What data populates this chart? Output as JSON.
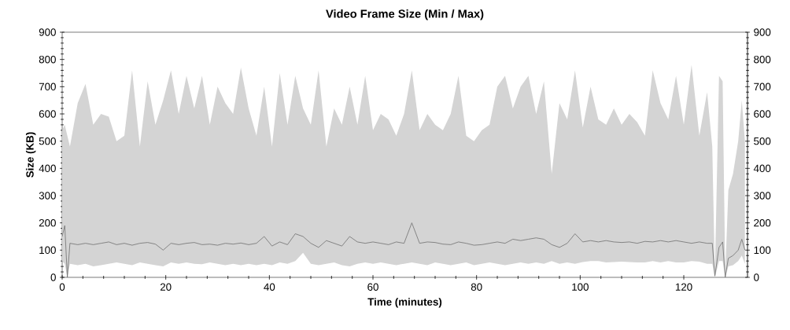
{
  "chart_data": {
    "type": "line",
    "title": "Video Frame Size (Min / Max)",
    "xlabel": "Time (minutes)",
    "ylabel": "Size (KB)",
    "x": [
      0,
      0.5,
      1,
      1.5,
      3,
      4.5,
      6,
      7.5,
      9,
      10.5,
      12,
      13.5,
      15,
      16.5,
      18,
      19.5,
      21,
      22.5,
      24,
      25.5,
      27,
      28.5,
      30,
      31.5,
      33,
      34.5,
      36,
      37.5,
      39,
      40.5,
      42,
      43.5,
      45,
      46.5,
      48,
      49.5,
      51,
      52.5,
      54,
      55.5,
      57,
      58.5,
      60,
      61.5,
      63,
      64.5,
      66,
      67.5,
      69,
      70.5,
      72,
      73.5,
      75,
      76.5,
      78,
      79.5,
      81,
      82.5,
      84,
      85.5,
      87,
      88.5,
      90,
      91.5,
      93,
      94.5,
      96,
      97.5,
      99,
      100.5,
      102,
      103.5,
      105,
      106.5,
      108,
      109.5,
      111,
      112.5,
      114,
      115.5,
      117,
      118.5,
      120,
      121.5,
      123,
      124.5,
      125.5,
      126,
      126.8,
      127.5,
      128,
      128.6,
      129.5,
      130.5,
      131.2,
      131.8
    ],
    "series": [
      {
        "color": "#707070",
        "values": [
          150,
          190,
          0,
          125,
          120,
          125,
          120,
          125,
          130,
          120,
          125,
          118,
          125,
          128,
          122,
          100,
          125,
          120,
          125,
          128,
          120,
          122,
          118,
          125,
          122,
          126,
          120,
          125,
          150,
          115,
          130,
          120,
          160,
          150,
          125,
          110,
          135,
          125,
          115,
          150,
          130,
          125,
          130,
          125,
          120,
          130,
          125,
          200,
          125,
          130,
          128,
          122,
          120,
          130,
          125,
          118,
          120,
          125,
          130,
          125,
          140,
          135,
          140,
          145,
          140,
          120,
          110,
          125,
          160,
          130,
          135,
          130,
          135,
          130,
          128,
          130,
          125,
          132,
          130,
          135,
          130,
          135,
          130,
          125,
          130,
          125,
          125,
          5,
          110,
          130,
          0,
          70,
          80,
          100,
          140,
          100
        ],
        "lower": [
          60,
          50,
          0,
          50,
          45,
          50,
          40,
          45,
          50,
          55,
          50,
          45,
          55,
          50,
          45,
          40,
          55,
          50,
          55,
          50,
          48,
          55,
          50,
          45,
          50,
          45,
          50,
          45,
          50,
          45,
          55,
          50,
          60,
          90,
          50,
          45,
          50,
          55,
          45,
          40,
          50,
          55,
          50,
          55,
          50,
          45,
          50,
          55,
          50,
          45,
          55,
          50,
          45,
          50,
          55,
          45,
          50,
          55,
          50,
          45,
          50,
          55,
          50,
          55,
          50,
          60,
          50,
          55,
          50,
          56,
          60,
          60,
          55,
          56,
          58,
          56,
          55,
          55,
          60,
          55,
          60,
          55,
          55,
          60,
          58,
          50,
          50,
          0,
          60,
          60,
          0,
          40,
          45,
          60,
          80,
          50
        ],
        "upper": [
          540,
          560,
          520,
          480,
          640,
          710,
          560,
          600,
          590,
          500,
          520,
          760,
          480,
          720,
          560,
          650,
          760,
          600,
          740,
          620,
          740,
          560,
          700,
          640,
          600,
          770,
          620,
          520,
          700,
          480,
          750,
          560,
          740,
          620,
          560,
          760,
          480,
          620,
          560,
          700,
          560,
          740,
          540,
          600,
          580,
          520,
          600,
          760,
          540,
          600,
          560,
          540,
          600,
          740,
          520,
          500,
          540,
          560,
          700,
          740,
          620,
          700,
          740,
          600,
          720,
          380,
          640,
          580,
          760,
          550,
          700,
          580,
          560,
          620,
          560,
          600,
          570,
          520,
          760,
          640,
          580,
          740,
          560,
          780,
          520,
          680,
          480,
          10,
          740,
          720,
          10,
          320,
          380,
          500,
          650,
          500
        ]
      }
    ],
    "xlim": [
      0,
      132.3
    ],
    "xticks": [
      0,
      20,
      40,
      60,
      80,
      100,
      120
    ],
    "ylim": [
      0,
      900
    ],
    "yticks": [
      0,
      100,
      200,
      300,
      400,
      500,
      600,
      700,
      800,
      900
    ],
    "y2lim": [
      0,
      900
    ],
    "y2ticks": [
      0,
      100,
      200,
      300,
      400,
      500,
      600,
      700,
      800,
      900
    ]
  }
}
